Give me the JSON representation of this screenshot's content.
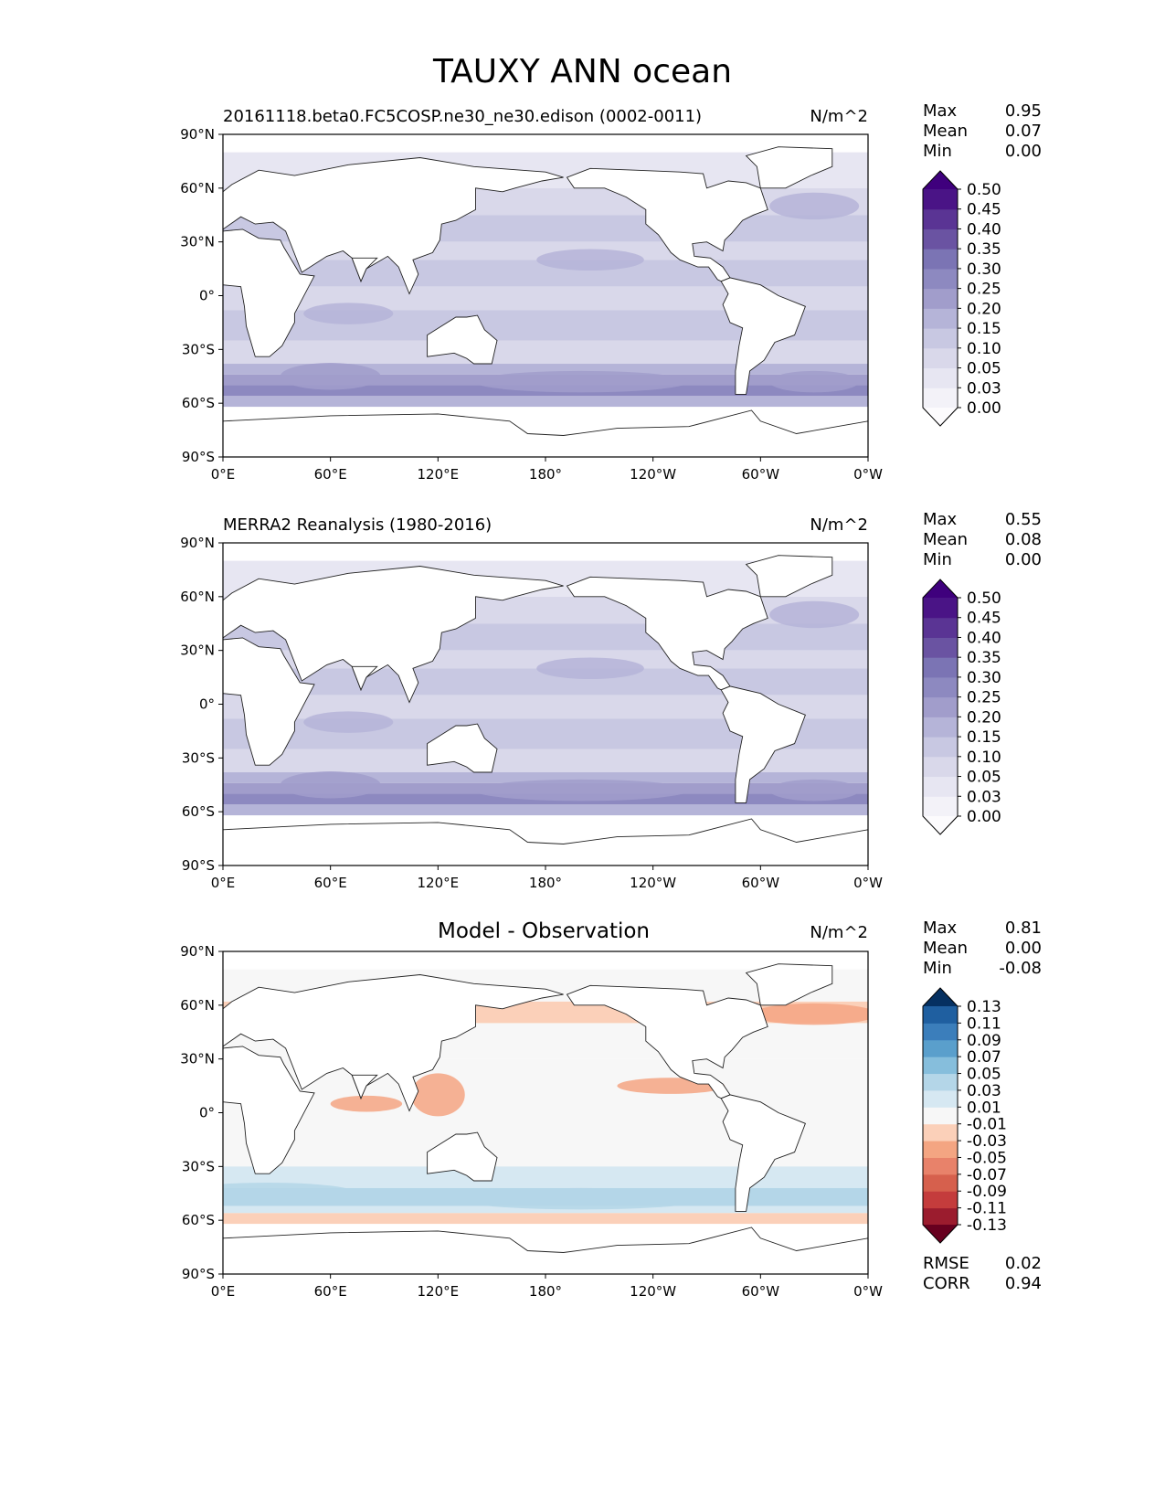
{
  "figure": {
    "title": "TAUXY ANN ocean"
  },
  "panels": [
    {
      "id": "model",
      "title": "20161118.beta0.FC5COSP.ne30_ne30.edison (0002-0011)",
      "units": "N/m^2",
      "stats": {
        "max_label": "Max",
        "max": "0.95",
        "mean_label": "Mean",
        "mean": "0.07",
        "min_label": "Min",
        "min": "0.00"
      },
      "colorbar": {
        "levels": [
          "0.00",
          "0.03",
          "0.05",
          "0.10",
          "0.15",
          "0.20",
          "0.25",
          "0.30",
          "0.35",
          "0.40",
          "0.45",
          "0.50"
        ],
        "colors": [
          "#fcfbfd",
          "#f3f2f8",
          "#e7e6f2",
          "#d9d8ea",
          "#c8c8e2",
          "#b5b4d8",
          "#a19dcb",
          "#8d89c0",
          "#7b74b4",
          "#6a53a2",
          "#5a3494",
          "#4a1486",
          "#3f007d"
        ],
        "extend": "both"
      }
    },
    {
      "id": "obs",
      "title": "MERRA2 Reanalysis (1980-2016)",
      "units": "N/m^2",
      "stats": {
        "max_label": "Max",
        "max": "0.55",
        "mean_label": "Mean",
        "mean": "0.08",
        "min_label": "Min",
        "min": "0.00"
      },
      "colorbar": {
        "levels": [
          "0.00",
          "0.03",
          "0.05",
          "0.10",
          "0.15",
          "0.20",
          "0.25",
          "0.30",
          "0.35",
          "0.40",
          "0.45",
          "0.50"
        ],
        "colors": [
          "#fcfbfd",
          "#f3f2f8",
          "#e7e6f2",
          "#d9d8ea",
          "#c8c8e2",
          "#b5b4d8",
          "#a19dcb",
          "#8d89c0",
          "#7b74b4",
          "#6a53a2",
          "#5a3494",
          "#4a1486",
          "#3f007d"
        ],
        "extend": "both"
      }
    },
    {
      "id": "diff",
      "title": "Model - Observation",
      "units": "N/m^2",
      "stats": {
        "max_label": "Max",
        "max": "0.81",
        "mean_label": "Mean",
        "mean": "0.00",
        "min_label": "Min",
        "min": "-0.08"
      },
      "metrics": {
        "rmse_label": "RMSE",
        "rmse": "0.02",
        "corr_label": "CORR",
        "corr": "0.94"
      },
      "colorbar": {
        "levels": [
          "-0.13",
          "-0.11",
          "-0.09",
          "-0.07",
          "-0.05",
          "-0.03",
          "-0.01",
          "0.01",
          "0.03",
          "0.05",
          "0.07",
          "0.09",
          "0.11",
          "0.13"
        ],
        "colors": [
          "#67001f",
          "#9b1c2e",
          "#c43c3c",
          "#d6604d",
          "#e8826a",
          "#f4a582",
          "#fbd0b9",
          "#f7f7f7",
          "#d6e8f2",
          "#b4d6e8",
          "#86bedc",
          "#5a9fcc",
          "#3b7ebb",
          "#1f5fa0",
          "#053061"
        ],
        "extend": "both"
      }
    }
  ],
  "axes": {
    "xticks": [
      "0°E",
      "60°E",
      "120°E",
      "180°",
      "120°W",
      "60°W",
      "0°W"
    ],
    "yticks": [
      "90°N",
      "60°N",
      "30°N",
      "0°",
      "30°S",
      "60°S",
      "90°S"
    ]
  },
  "chart_data": [
    {
      "type": "heatmap",
      "title": "20161118.beta0.FC5COSP.ne30_ne30.edison (0002-0011)",
      "units": "N/m^2",
      "xlim": [
        0,
        360
      ],
      "ylim": [
        -90,
        90
      ],
      "regions": [
        {
          "lat": [
            -62,
            -40
          ],
          "level": 0.2
        },
        {
          "lat": [
            -40,
            -30
          ],
          "level": 0.1
        },
        {
          "lat": [
            -30,
            30
          ],
          "level": 0.05
        },
        {
          "lat": [
            30,
            60
          ],
          "level": 0.1
        }
      ]
    },
    {
      "type": "heatmap",
      "title": "MERRA2 Reanalysis (1980-2016)",
      "units": "N/m^2",
      "xlim": [
        0,
        360
      ],
      "ylim": [
        -90,
        90
      ],
      "regions": [
        {
          "lat": [
            -62,
            -40
          ],
          "level": 0.2
        },
        {
          "lat": [
            -40,
            -30
          ],
          "level": 0.1
        },
        {
          "lat": [
            -30,
            30
          ],
          "level": 0.05
        },
        {
          "lat": [
            30,
            60
          ],
          "level": 0.1
        }
      ]
    },
    {
      "type": "heatmap",
      "title": "Model - Observation",
      "units": "N/m^2",
      "xlim": [
        0,
        360
      ],
      "ylim": [
        -90,
        90
      ],
      "regions": [
        {
          "lat": [
            -60,
            -55
          ],
          "level": -0.01
        },
        {
          "lat": [
            -55,
            -40
          ],
          "level": 0.01
        },
        {
          "lat": [
            -40,
            30
          ],
          "level": 0.0
        },
        {
          "lat": [
            45,
            60
          ],
          "level": -0.01
        }
      ]
    }
  ]
}
